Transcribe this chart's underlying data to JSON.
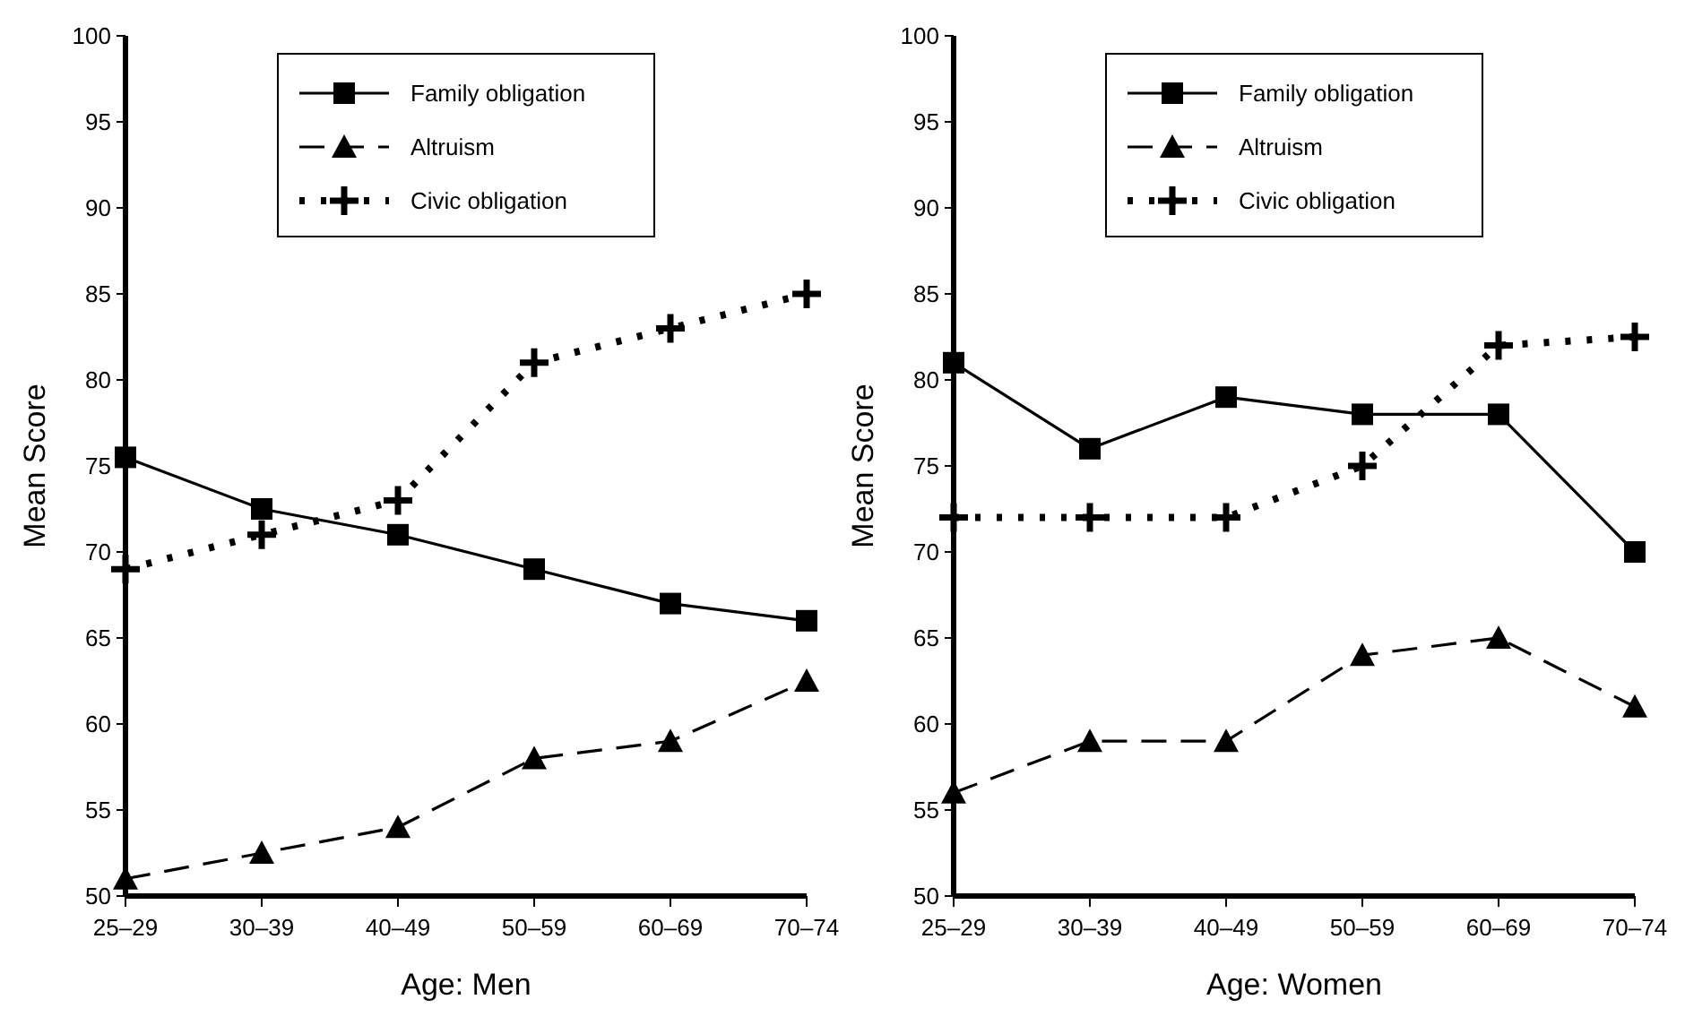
{
  "chart_data": [
    {
      "type": "line",
      "xlabel": "Age:  Men",
      "ylabel": "Mean Score",
      "categories": [
        "25–29",
        "30–39",
        "40–49",
        "50–59",
        "60–69",
        "70–74"
      ],
      "ylim": [
        50,
        100
      ],
      "yticks": [
        50,
        55,
        60,
        65,
        70,
        75,
        80,
        85,
        90,
        95,
        100
      ],
      "grid": false,
      "legend": "top",
      "series": [
        {
          "name": "Family obligation",
          "color": "#000000",
          "marker": "square",
          "line_style": "solid",
          "values": [
            75.5,
            72.5,
            71,
            69,
            67,
            66
          ]
        },
        {
          "name": "Altruism",
          "color": "#000000",
          "marker": "triangle",
          "line_style": "dashed",
          "values": [
            51,
            52.5,
            54,
            58,
            59,
            62.5
          ]
        },
        {
          "name": "Civic obligation",
          "color": "#000000",
          "marker": "cross",
          "line_style": "dotted",
          "values": [
            69,
            71,
            73,
            81,
            83,
            85
          ]
        }
      ]
    },
    {
      "type": "line",
      "xlabel": "Age:  Women",
      "ylabel": "Mean Score",
      "categories": [
        "25–29",
        "30–39",
        "40–49",
        "50–59",
        "60–69",
        "70–74"
      ],
      "ylim": [
        50,
        100
      ],
      "yticks": [
        50,
        55,
        60,
        65,
        70,
        75,
        80,
        85,
        90,
        95,
        100
      ],
      "grid": false,
      "legend": "top",
      "series": [
        {
          "name": "Family obligation",
          "color": "#000000",
          "marker": "square",
          "line_style": "solid",
          "values": [
            81,
            76,
            79,
            78,
            78,
            70
          ]
        },
        {
          "name": "Altruism",
          "color": "#000000",
          "marker": "triangle",
          "line_style": "dashed",
          "values": [
            56,
            59,
            59,
            64,
            65,
            61
          ]
        },
        {
          "name": "Civic obligation",
          "color": "#000000",
          "marker": "cross",
          "line_style": "dotted",
          "values": [
            72,
            72,
            72,
            75,
            82,
            82.5
          ]
        }
      ]
    }
  ]
}
